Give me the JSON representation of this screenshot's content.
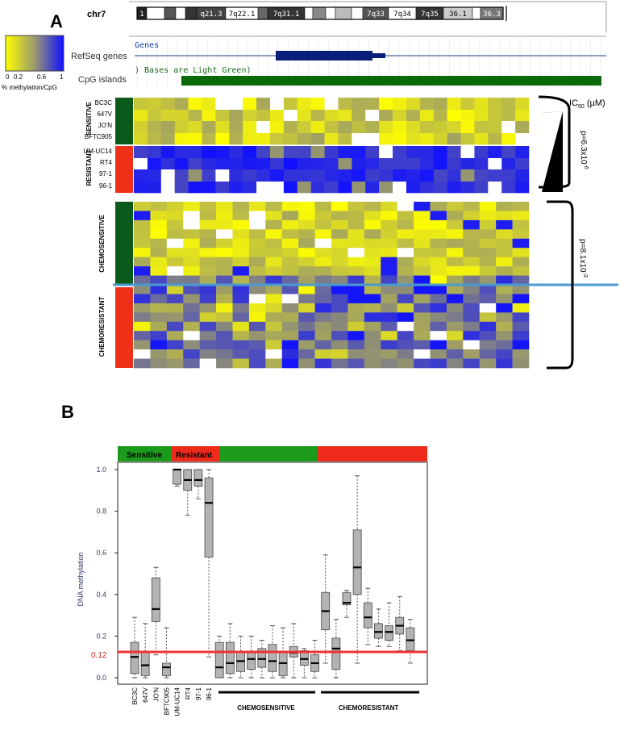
{
  "panel_a": {
    "label": "A",
    "chrom": {
      "name": "chr7",
      "bands": [
        {
          "label": "1",
          "color": "#222222",
          "text_color": "#ffffff"
        },
        {
          "label": "",
          "color": "#ffffff"
        },
        {
          "label": "",
          "color": "#555555"
        },
        {
          "label": "",
          "color": "#ffffff"
        },
        {
          "label": "",
          "color": "#333333"
        },
        {
          "label": "q21.3",
          "color": "#444444",
          "text_color": "#ffffff"
        },
        {
          "label": "7q22.1",
          "color": "#ffffff",
          "text_color": "#000000"
        },
        {
          "label": "",
          "color": "#666666"
        },
        {
          "label": "7q31.1",
          "color": "#333333",
          "text_color": "#ffffff"
        },
        {
          "label": "",
          "color": "#ffffff"
        },
        {
          "label": "",
          "color": "#888888"
        },
        {
          "label": "",
          "color": "#ffffff"
        },
        {
          "label": "",
          "color": "#bbbbbb"
        },
        {
          "label": "",
          "color": "#ffffff"
        },
        {
          "label": "7q33",
          "color": "#555555",
          "text_color": "#ffffff"
        },
        {
          "label": "7q34",
          "color": "#ffffff",
          "text_color": "#000000"
        },
        {
          "label": "7q35",
          "color": "#333333",
          "text_color": "#ffffff"
        },
        {
          "label": "36.1",
          "color": "#cccccc",
          "text_color": "#000000"
        },
        {
          "label": "",
          "color": "#ffffff"
        },
        {
          "label": "36.3",
          "color": "#777777",
          "text_color": "#ffffff"
        }
      ]
    },
    "tracks": {
      "genes_header": "Genes",
      "refseq_label": "RefSeq genes",
      "cpg_header": ") Bases are Light Green)",
      "cpg_label": "CpG islands"
    },
    "colorbar": {
      "ticks": [
        "0",
        "0.2",
        "0.6",
        "1"
      ],
      "label": "% methylation/CpG",
      "colors": [
        "#ffff00",
        "#1010ff"
      ]
    },
    "heatmap_top": {
      "rows": [
        "BC3C",
        "647V",
        "JO'N",
        "BFTC905",
        "UM-UC14",
        "RT4",
        "97-1",
        "96-1"
      ],
      "groups": [
        "SENSITIVE",
        "RESISTANT"
      ],
      "ic50_label": "IC",
      "ic50_sub": "50",
      "ic50_unit": " (µM)",
      "pvalue": "p=6.3x10",
      "pvalue_exp": "-6"
    },
    "heatmap_bottom": {
      "groups": [
        "CHEMOSENSITIVE",
        "CHEMORESISTANT"
      ],
      "pvalue": "p=8.1x10",
      "pvalue_exp": "-3"
    }
  },
  "panel_b": {
    "label": "B",
    "colors": {
      "sensitive": "#1b9a1b",
      "resistant": "#ee2a1a",
      "box": "#b3b3b3",
      "threshold": "#ee3333",
      "axis_text": "#333366"
    },
    "chart_data": {
      "type": "box",
      "ylabel": "DNA methylation",
      "ylim": [
        0,
        1.0
      ],
      "yticks": [
        "0.0",
        "0.2",
        "0.4",
        "0.6",
        "0.8",
        "1.0"
      ],
      "threshold": 0.12,
      "threshold_label": "0.12",
      "header_labels": [
        "Sensitive",
        "Resistant",
        "",
        ""
      ],
      "categories": [
        "BC3C",
        "647V",
        "JO'N",
        "BFTC905",
        "UM-UC14",
        "RT4",
        "97-1",
        "96-1"
      ],
      "group_labels": [
        "CHEMOSENSITIVE",
        "CHEMORESISTANT"
      ],
      "boxes": [
        {
          "min": 0.0,
          "q1": 0.02,
          "median": 0.1,
          "q3": 0.17,
          "max": 0.29
        },
        {
          "min": 0.0,
          "q1": 0.01,
          "median": 0.06,
          "q3": 0.12,
          "max": 0.26
        },
        {
          "min": 0.11,
          "q1": 0.27,
          "median": 0.33,
          "q3": 0.48,
          "max": 0.53
        },
        {
          "min": 0.0,
          "q1": 0.01,
          "median": 0.05,
          "q3": 0.07,
          "max": 0.24
        },
        {
          "min": 0.92,
          "q1": 0.93,
          "median": 1.0,
          "q3": 1.0,
          "max": 1.0
        },
        {
          "min": 0.78,
          "q1": 0.9,
          "median": 0.95,
          "q3": 1.0,
          "max": 1.0
        },
        {
          "min": 0.86,
          "q1": 0.92,
          "median": 0.95,
          "q3": 1.0,
          "max": 1.0
        },
        {
          "min": 0.1,
          "q1": 0.58,
          "median": 0.84,
          "q3": 0.96,
          "max": 1.0
        },
        {
          "min": 0.0,
          "q1": 0.0,
          "median": 0.05,
          "q3": 0.17,
          "max": 0.2
        },
        {
          "min": 0.0,
          "q1": 0.02,
          "median": 0.07,
          "q3": 0.17,
          "max": 0.26
        },
        {
          "min": 0.0,
          "q1": 0.03,
          "median": 0.08,
          "q3": 0.12,
          "max": 0.2
        },
        {
          "min": 0.0,
          "q1": 0.04,
          "median": 0.09,
          "q3": 0.12,
          "max": 0.2
        },
        {
          "min": 0.0,
          "q1": 0.05,
          "median": 0.09,
          "q3": 0.14,
          "max": 0.18
        },
        {
          "min": 0.0,
          "q1": 0.03,
          "median": 0.08,
          "q3": 0.16,
          "max": 0.25
        },
        {
          "min": 0.0,
          "q1": 0.01,
          "median": 0.07,
          "q3": 0.12,
          "max": 0.24
        },
        {
          "min": 0.0,
          "q1": 0.1,
          "median": 0.12,
          "q3": 0.15,
          "max": 0.26
        },
        {
          "min": 0.0,
          "q1": 0.06,
          "median": 0.09,
          "q3": 0.13,
          "max": 0.14
        },
        {
          "min": 0.0,
          "q1": 0.03,
          "median": 0.07,
          "q3": 0.11,
          "max": 0.18
        },
        {
          "min": 0.07,
          "q1": 0.23,
          "median": 0.32,
          "q3": 0.41,
          "max": 0.59
        },
        {
          "min": 0.0,
          "q1": 0.04,
          "median": 0.14,
          "q3": 0.19,
          "max": 0.28
        },
        {
          "min": 0.29,
          "q1": 0.35,
          "median": 0.36,
          "q3": 0.41,
          "max": 0.42
        },
        {
          "min": 0.07,
          "q1": 0.4,
          "median": 0.53,
          "q3": 0.71,
          "max": 0.97
        },
        {
          "min": 0.16,
          "q1": 0.24,
          "median": 0.29,
          "q3": 0.36,
          "max": 0.43
        },
        {
          "min": 0.15,
          "q1": 0.19,
          "median": 0.22,
          "q3": 0.26,
          "max": 0.33
        },
        {
          "min": 0.15,
          "q1": 0.18,
          "median": 0.22,
          "q3": 0.25,
          "max": 0.36
        },
        {
          "min": 0.13,
          "q1": 0.21,
          "median": 0.25,
          "q3": 0.29,
          "max": 0.39
        },
        {
          "min": 0.07,
          "q1": 0.13,
          "median": 0.18,
          "q3": 0.24,
          "max": 0.28
        }
      ]
    }
  }
}
